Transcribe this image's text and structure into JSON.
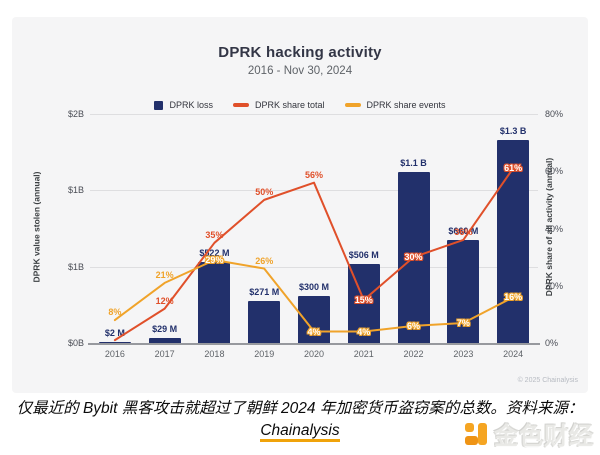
{
  "card": {
    "copyright": "© 2025 Chainalysis"
  },
  "chart_data": {
    "type": "bar+line",
    "title": "DPRK hacking activity",
    "subtitle": "2016 - Nov 30, 2024",
    "categories": [
      "2016",
      "2017",
      "2018",
      "2019",
      "2020",
      "2021",
      "2022",
      "2023",
      "2024"
    ],
    "left_axis": {
      "label": "DPRK value stolen (annual)",
      "ticks": [
        "$2B",
        "$1B",
        "$1B",
        "$0B"
      ],
      "bar_axis_max_musd": 1470
    },
    "right_axis": {
      "label": "DPRK share of all activity (annual)",
      "ticks": [
        "80%",
        "60%",
        "40%",
        "20%",
        "0%"
      ],
      "max_pct": 80
    },
    "grid": true,
    "legend_position": "top",
    "series": [
      {
        "name": "DPRK loss",
        "type": "bar",
        "color": "#22306b",
        "values_musd": [
          2,
          29,
          522,
          271,
          300,
          506,
          1100,
          660,
          1300
        ],
        "labels": [
          "$2 M",
          "$29 M",
          "$522 M",
          "$271 M",
          "$300 M",
          "$506 M",
          "$1.1 B",
          "$660 M",
          "$1.3 B"
        ]
      },
      {
        "name": "DPRK share total",
        "type": "line",
        "color": "#e0502a",
        "values_pct": [
          1,
          12,
          35,
          50,
          56,
          15,
          30,
          36,
          61
        ],
        "labels": [
          null,
          "12%",
          "35%",
          "50%",
          "56%",
          "15%",
          "30%",
          "36%",
          "61%"
        ],
        "label_on_bar": [
          false,
          false,
          false,
          false,
          false,
          true,
          true,
          false,
          true
        ]
      },
      {
        "name": "DPRK share events",
        "type": "line",
        "color": "#f0a32a",
        "values_pct": [
          8,
          21,
          29,
          26,
          4,
          4,
          6,
          7,
          16
        ],
        "labels": [
          "8%",
          "21%",
          "29%",
          "26%",
          "4%",
          "4%",
          "6%",
          "7%",
          "16%"
        ],
        "label_on_bar": [
          false,
          false,
          true,
          false,
          true,
          true,
          true,
          true,
          true
        ]
      }
    ]
  },
  "legend": [
    {
      "label": "DPRK loss",
      "color": "#22306b",
      "swatch": "square"
    },
    {
      "label": "DPRK share total",
      "color": "#e0502a",
      "swatch": "dash"
    },
    {
      "label": "DPRK share events",
      "color": "#f0a32a",
      "swatch": "dash"
    }
  ],
  "caption": {
    "line1": "仅最近的 Bybit 黑客攻击就超过了朝鲜 2024 年加密货币盗窃案的总数。资料来源：",
    "link": "Chainalysis"
  },
  "watermark": {
    "text": "金色财经",
    "icon_color": "#f5a522",
    "icon_color_dark": "#ef9415"
  }
}
